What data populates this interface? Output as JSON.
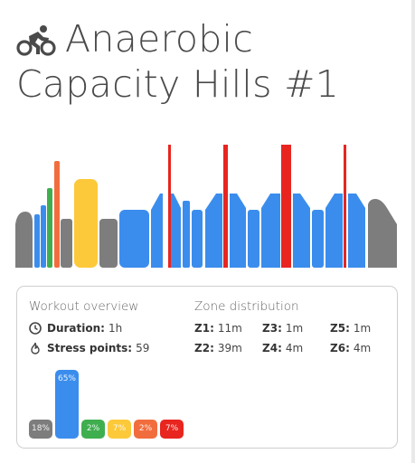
{
  "header": {
    "title_line1": "Anaerobic",
    "title_line2": "Capacity Hills #1",
    "icon": "cyclist-icon"
  },
  "colors": {
    "gray": "#7d7d7d",
    "blue": "#3b8ded",
    "green": "#3fae4f",
    "yellow": "#fcc93a",
    "orange": "#f26d3d",
    "red": "#e8251f"
  },
  "overview": {
    "title": "Workout overview",
    "duration_label": "Duration",
    "duration_value": "1h",
    "duration_icon": "clock-icon",
    "stress_label": "Stress points",
    "stress_value": "59",
    "stress_icon": "flame-icon"
  },
  "zones": {
    "title": "Zone distribution",
    "items": [
      {
        "key": "Z1",
        "value": "11m"
      },
      {
        "key": "Z2",
        "value": "39m"
      },
      {
        "key": "Z3",
        "value": "1m"
      },
      {
        "key": "Z4",
        "value": "4m"
      },
      {
        "key": "Z5",
        "value": "1m"
      },
      {
        "key": "Z6",
        "value": "4m"
      }
    ]
  },
  "chart_data": {
    "type": "bar",
    "categories": [
      "Z1",
      "Z2",
      "Z3",
      "Z4",
      "Z5",
      "Z6"
    ],
    "values": [
      18,
      65,
      2,
      7,
      2,
      7
    ],
    "labels": [
      "18%",
      "65%",
      "2%",
      "7%",
      "2%",
      "7%"
    ],
    "colors": [
      "#7d7d7d",
      "#3b8ded",
      "#3fae4f",
      "#fcc93a",
      "#f26d3d",
      "#e8251f"
    ]
  }
}
